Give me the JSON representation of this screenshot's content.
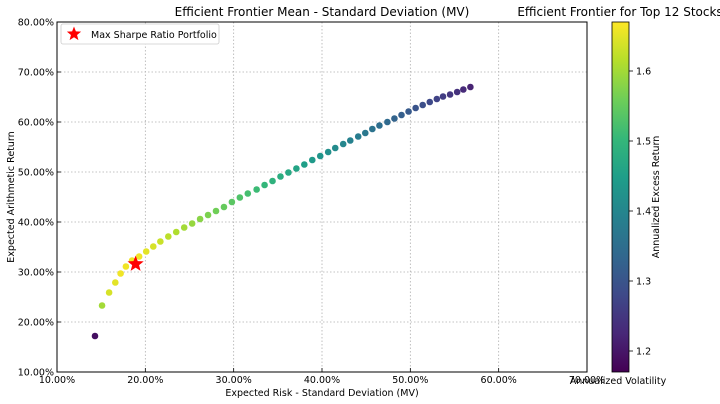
{
  "chart_data": {
    "type": "scatter",
    "title": "Efficient Frontier Mean - Standard Deviation (MV)",
    "figure_title": "Efficient Frontier for Top 12 Stocks",
    "xlabel": "Expected Risk - Standard Deviation (MV)",
    "ylabel": "Expected Arithmetic Return",
    "xlim": [
      0.1,
      0.7
    ],
    "ylim": [
      0.1,
      0.8
    ],
    "x_ticks": [
      "10.00%",
      "20.00%",
      "30.00%",
      "40.00%",
      "50.00%",
      "60.00%",
      "70.00%"
    ],
    "y_ticks": [
      "10.00%",
      "20.00%",
      "30.00%",
      "40.00%",
      "50.00%",
      "60.00%",
      "70.00%",
      "80.00%"
    ],
    "grid": true,
    "colormap": "viridis",
    "colorbar": {
      "label": "Annualized Excess Return",
      "range": [
        1.17,
        1.67
      ],
      "ticks": [
        "1.2",
        "1.3",
        "1.4",
        "1.5",
        "1.6"
      ],
      "overlap_label": "Annualized Volatility"
    },
    "series": [
      {
        "x": [
          0.143,
          0.151,
          0.159,
          0.166,
          0.172,
          0.178,
          0.185,
          0.193,
          0.201,
          0.209,
          0.217,
          0.226,
          0.235,
          0.244,
          0.253,
          0.262,
          0.271,
          0.28,
          0.289,
          0.298,
          0.307,
          0.316,
          0.326,
          0.335,
          0.344,
          0.353,
          0.362,
          0.371,
          0.38,
          0.389,
          0.398,
          0.407,
          0.415,
          0.424,
          0.432,
          0.441,
          0.449,
          0.457,
          0.465,
          0.474,
          0.482,
          0.49,
          0.498,
          0.506,
          0.514,
          0.522,
          0.53,
          0.537,
          0.545,
          0.553,
          0.56,
          0.568
        ],
        "y": [
          0.172,
          0.233,
          0.259,
          0.279,
          0.297,
          0.311,
          0.323,
          0.331,
          0.341,
          0.351,
          0.361,
          0.371,
          0.38,
          0.389,
          0.397,
          0.406,
          0.414,
          0.422,
          0.43,
          0.44,
          0.449,
          0.457,
          0.465,
          0.474,
          0.482,
          0.491,
          0.499,
          0.507,
          0.515,
          0.524,
          0.532,
          0.54,
          0.548,
          0.556,
          0.563,
          0.571,
          0.578,
          0.586,
          0.593,
          0.6,
          0.607,
          0.614,
          0.621,
          0.628,
          0.634,
          0.64,
          0.646,
          0.651,
          0.655,
          0.66,
          0.665,
          0.67
        ],
        "c": [
          1.19,
          1.6,
          1.64,
          1.65,
          1.66,
          1.66,
          1.66,
          1.66,
          1.65,
          1.64,
          1.63,
          1.62,
          1.61,
          1.6,
          1.59,
          1.58,
          1.57,
          1.56,
          1.55,
          1.54,
          1.53,
          1.52,
          1.51,
          1.5,
          1.49,
          1.48,
          1.47,
          1.46,
          1.45,
          1.44,
          1.43,
          1.42,
          1.41,
          1.4,
          1.39,
          1.38,
          1.37,
          1.36,
          1.35,
          1.34,
          1.33,
          1.32,
          1.31,
          1.3,
          1.29,
          1.28,
          1.27,
          1.26,
          1.25,
          1.24,
          1.23,
          1.22
        ]
      }
    ],
    "highlight": {
      "label": "Max Sharpe Ratio Portfolio",
      "x": 0.189,
      "y": 0.316,
      "marker": "star",
      "color": "#ff0000"
    },
    "legend_position": "upper-left"
  }
}
